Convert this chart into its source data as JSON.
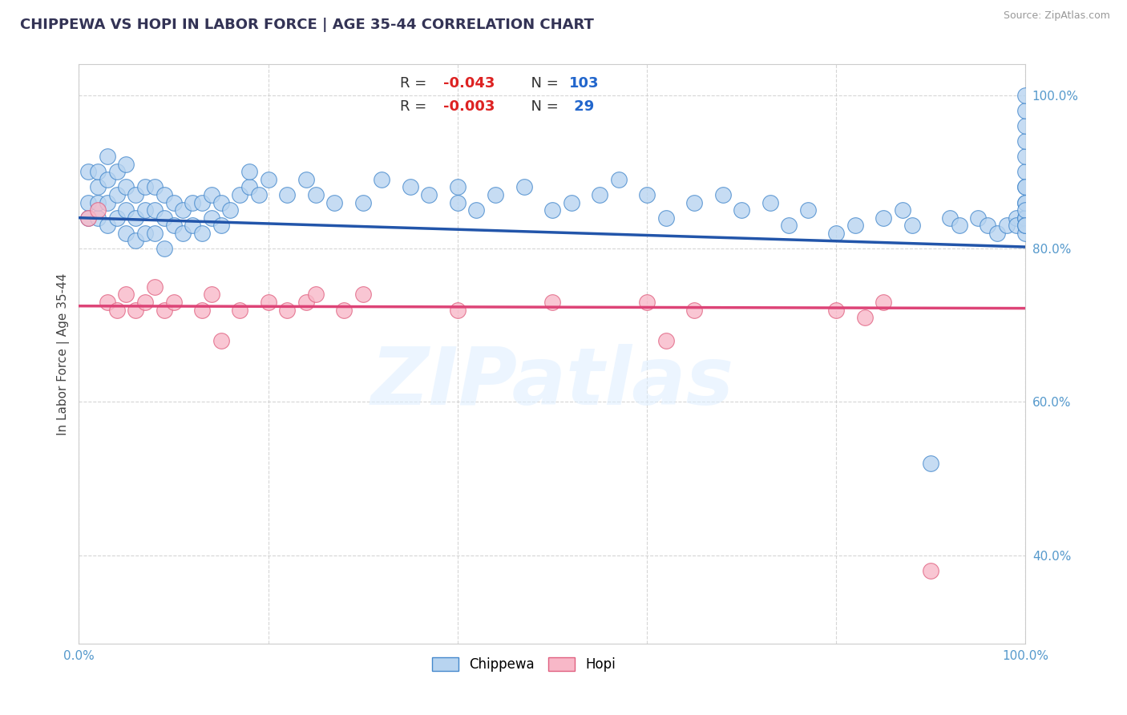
{
  "title": "CHIPPEWA VS HOPI IN LABOR FORCE | AGE 35-44 CORRELATION CHART",
  "ylabel": "In Labor Force | Age 35-44",
  "source": "Source: ZipAtlas.com",
  "chippewa_R": "-0.043",
  "chippewa_N": "103",
  "hopi_R": "-0.003",
  "hopi_N": "29",
  "xlim": [
    0.0,
    1.0
  ],
  "ylim": [
    0.285,
    1.04
  ],
  "background_color": "#ffffff",
  "dot_color_chippewa_face": "#b8d4f0",
  "dot_color_chippewa_edge": "#4488cc",
  "dot_color_hopi_face": "#f8b8c8",
  "dot_color_hopi_edge": "#e06080",
  "line_color_chippewa": "#2255aa",
  "line_color_hopi": "#dd4477",
  "chip_line_y0": 0.84,
  "chip_line_y1": 0.802,
  "hopi_line_y0": 0.725,
  "hopi_line_y1": 0.722,
  "grid_color": "#cccccc",
  "tick_color": "#5599cc",
  "watermark_text": "ZIPatlas",
  "legend_label_chippewa": "Chippewa",
  "legend_label_hopi": "Hopi",
  "r_label_color": "#dd2222",
  "n_label_color": "#2266cc",
  "chippewa_x": [
    0.01,
    0.01,
    0.01,
    0.02,
    0.02,
    0.02,
    0.02,
    0.03,
    0.03,
    0.03,
    0.03,
    0.04,
    0.04,
    0.04,
    0.05,
    0.05,
    0.05,
    0.05,
    0.06,
    0.06,
    0.06,
    0.07,
    0.07,
    0.07,
    0.08,
    0.08,
    0.08,
    0.09,
    0.09,
    0.09,
    0.1,
    0.1,
    0.11,
    0.11,
    0.12,
    0.12,
    0.13,
    0.13,
    0.14,
    0.14,
    0.15,
    0.15,
    0.16,
    0.17,
    0.18,
    0.18,
    0.19,
    0.2,
    0.22,
    0.24,
    0.25,
    0.27,
    0.3,
    0.32,
    0.35,
    0.37,
    0.4,
    0.4,
    0.42,
    0.44,
    0.47,
    0.5,
    0.52,
    0.55,
    0.57,
    0.6,
    0.62,
    0.65,
    0.68,
    0.7,
    0.73,
    0.75,
    0.77,
    0.8,
    0.82,
    0.85,
    0.87,
    0.88,
    0.9,
    0.92,
    0.93,
    0.95,
    0.96,
    0.97,
    0.98,
    0.99,
    0.99,
    1.0,
    1.0,
    1.0,
    1.0,
    1.0,
    1.0,
    1.0,
    1.0,
    1.0,
    1.0,
    1.0,
    1.0,
    1.0,
    1.0,
    1.0,
    1.0
  ],
  "chippewa_y": [
    0.84,
    0.86,
    0.9,
    0.84,
    0.86,
    0.88,
    0.9,
    0.83,
    0.86,
    0.89,
    0.92,
    0.84,
    0.87,
    0.9,
    0.82,
    0.85,
    0.88,
    0.91,
    0.81,
    0.84,
    0.87,
    0.82,
    0.85,
    0.88,
    0.82,
    0.85,
    0.88,
    0.8,
    0.84,
    0.87,
    0.83,
    0.86,
    0.82,
    0.85,
    0.83,
    0.86,
    0.82,
    0.86,
    0.84,
    0.87,
    0.83,
    0.86,
    0.85,
    0.87,
    0.88,
    0.9,
    0.87,
    0.89,
    0.87,
    0.89,
    0.87,
    0.86,
    0.86,
    0.89,
    0.88,
    0.87,
    0.86,
    0.88,
    0.85,
    0.87,
    0.88,
    0.85,
    0.86,
    0.87,
    0.89,
    0.87,
    0.84,
    0.86,
    0.87,
    0.85,
    0.86,
    0.83,
    0.85,
    0.82,
    0.83,
    0.84,
    0.85,
    0.83,
    0.52,
    0.84,
    0.83,
    0.84,
    0.83,
    0.82,
    0.83,
    0.84,
    0.83,
    0.84,
    0.86,
    0.88,
    0.9,
    0.92,
    0.94,
    0.96,
    0.98,
    1.0,
    0.84,
    0.86,
    0.88,
    0.82,
    0.83,
    0.85,
    0.83
  ],
  "hopi_x": [
    0.01,
    0.02,
    0.03,
    0.04,
    0.05,
    0.06,
    0.07,
    0.08,
    0.09,
    0.1,
    0.13,
    0.14,
    0.15,
    0.17,
    0.2,
    0.22,
    0.24,
    0.25,
    0.28,
    0.3,
    0.4,
    0.5,
    0.6,
    0.62,
    0.65,
    0.8,
    0.83,
    0.85,
    0.9
  ],
  "hopi_y": [
    0.84,
    0.85,
    0.73,
    0.72,
    0.74,
    0.72,
    0.73,
    0.75,
    0.72,
    0.73,
    0.72,
    0.74,
    0.68,
    0.72,
    0.73,
    0.72,
    0.73,
    0.74,
    0.72,
    0.74,
    0.72,
    0.73,
    0.73,
    0.68,
    0.72,
    0.72,
    0.71,
    0.73,
    0.38
  ]
}
